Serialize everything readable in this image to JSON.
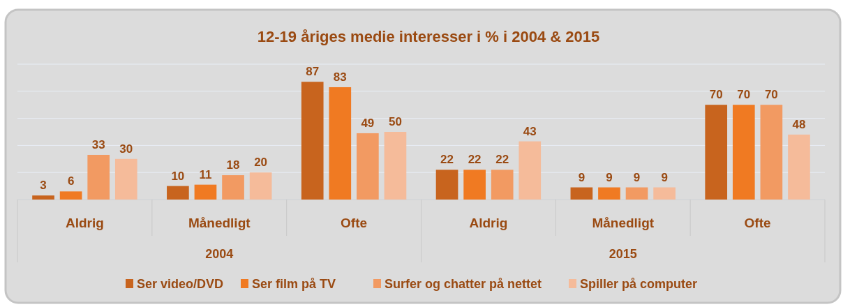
{
  "chart_data": {
    "type": "bar",
    "title": "12-19 åriges medie interesser i % i 2004 & 2015",
    "categories": [
      "Aldrig",
      "Månedligt",
      "Ofte",
      "Aldrig",
      "Månedligt",
      "Ofte"
    ],
    "annotations": [
      "2004",
      "2015"
    ],
    "series": [
      {
        "name": "Ser video/DVD",
        "color": "#c8641e",
        "values": [
          3,
          10,
          87,
          22,
          9,
          70
        ]
      },
      {
        "name": "Ser film på TV",
        "color": "#f07a22",
        "values": [
          6,
          11,
          83,
          22,
          9,
          70
        ]
      },
      {
        "name": "Surfer og chatter på nettet",
        "color": "#f29a62",
        "values": [
          33,
          18,
          49,
          22,
          9,
          70
        ]
      },
      {
        "name": "Spiller på computer",
        "color": "#f5bb9a",
        "values": [
          30,
          20,
          50,
          43,
          9,
          48
        ]
      }
    ],
    "ylim": [
      0,
      100
    ],
    "yticks": [
      {
        "value": 0,
        "label": null
      },
      {
        "value": 20,
        "label": null
      },
      {
        "value": 40,
        "label": null
      },
      {
        "value": 60,
        "label": null
      },
      {
        "value": 80,
        "label": null
      },
      {
        "value": 100,
        "label": null
      }
    ],
    "grid": "y",
    "tick_labels": "x",
    "data_labels": true,
    "legend": "bottom"
  }
}
